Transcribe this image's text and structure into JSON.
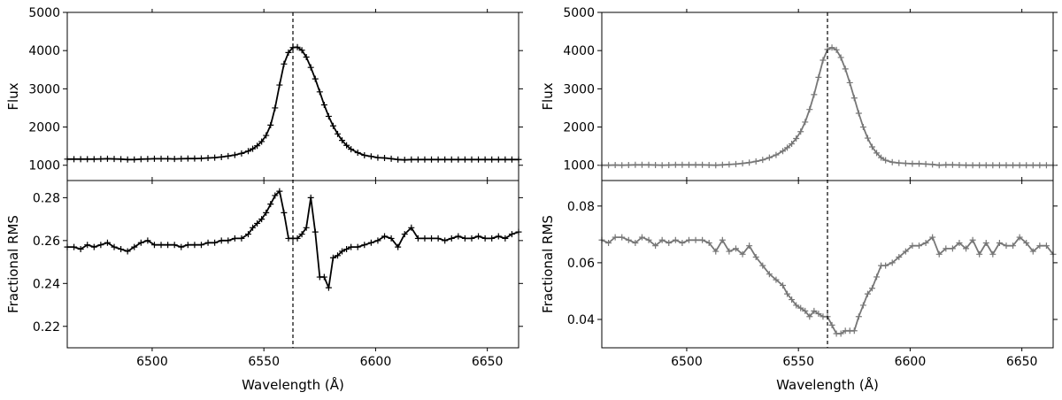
{
  "chart_data": [
    {
      "panel": "left",
      "type": "line",
      "color": "#000000",
      "marker": "+",
      "reference_line_x": 6563,
      "xlim": [
        6462,
        6664
      ],
      "xticks": [
        "6500",
        "6550",
        "6600",
        "6650"
      ],
      "xtick_values": [
        6500,
        6550,
        6600,
        6650
      ],
      "xlabel": "Wavelength (Å)",
      "subplots": [
        {
          "name": "flux",
          "ylabel": "Flux",
          "ylim": [
            600,
            5000
          ],
          "yticks": [
            "1000",
            "2000",
            "3000",
            "4000",
            "5000"
          ],
          "ytick_values": [
            1000,
            2000,
            3000,
            4000,
            5000
          ],
          "x": [
            6462,
            6465,
            6468,
            6471,
            6474,
            6477,
            6480,
            6483,
            6486,
            6489,
            6492,
            6495,
            6498,
            6501,
            6504,
            6507,
            6510,
            6513,
            6516,
            6519,
            6522,
            6525,
            6528,
            6531,
            6534,
            6537,
            6540,
            6543,
            6545,
            6547,
            6549,
            6551,
            6553,
            6555,
            6557,
            6559,
            6561,
            6563,
            6565,
            6567,
            6569,
            6571,
            6573,
            6575,
            6577,
            6579,
            6581,
            6583,
            6585,
            6587,
            6589,
            6592,
            6595,
            6598,
            6601,
            6604,
            6607,
            6610,
            6613,
            6616,
            6619,
            6622,
            6625,
            6628,
            6631,
            6634,
            6637,
            6640,
            6643,
            6646,
            6649,
            6652,
            6655,
            6658,
            6661,
            6664
          ],
          "y": [
            1160,
            1160,
            1160,
            1160,
            1160,
            1165,
            1170,
            1165,
            1160,
            1150,
            1150,
            1160,
            1165,
            1170,
            1170,
            1170,
            1165,
            1170,
            1175,
            1175,
            1180,
            1190,
            1200,
            1215,
            1240,
            1270,
            1310,
            1370,
            1430,
            1510,
            1620,
            1780,
            2050,
            2500,
            3100,
            3650,
            3950,
            4080,
            4090,
            4010,
            3830,
            3560,
            3260,
            2920,
            2580,
            2280,
            2030,
            1820,
            1650,
            1520,
            1420,
            1330,
            1260,
            1230,
            1200,
            1190,
            1170,
            1150,
            1140,
            1150,
            1150,
            1150,
            1150,
            1150,
            1150,
            1150,
            1150,
            1150,
            1150,
            1150,
            1150,
            1150,
            1150,
            1150,
            1150,
            1150
          ]
        },
        {
          "name": "rms",
          "ylabel": "Fractional RMS",
          "ylim": [
            0.21,
            0.288
          ],
          "yticks": [
            "0.22",
            "0.24",
            "0.26",
            "0.28"
          ],
          "ytick_values": [
            0.22,
            0.24,
            0.26,
            0.28
          ],
          "x": [
            6462,
            6465,
            6468,
            6471,
            6474,
            6477,
            6480,
            6483,
            6486,
            6489,
            6492,
            6495,
            6498,
            6501,
            6504,
            6507,
            6510,
            6513,
            6516,
            6519,
            6522,
            6525,
            6528,
            6531,
            6534,
            6537,
            6540,
            6543,
            6545,
            6547,
            6549,
            6551,
            6553,
            6555,
            6557,
            6559,
            6561,
            6563,
            6565,
            6567,
            6569,
            6571,
            6573,
            6575,
            6577,
            6579,
            6581,
            6583,
            6585,
            6587,
            6589,
            6592,
            6595,
            6598,
            6601,
            6604,
            6607,
            6610,
            6613,
            6616,
            6619,
            6622,
            6625,
            6628,
            6631,
            6634,
            6637,
            6640,
            6643,
            6646,
            6649,
            6652,
            6655,
            6658,
            6661,
            6664
          ],
          "y": [
            0.257,
            0.257,
            0.256,
            0.258,
            0.257,
            0.258,
            0.259,
            0.257,
            0.256,
            0.255,
            0.257,
            0.259,
            0.26,
            0.258,
            0.258,
            0.258,
            0.258,
            0.257,
            0.258,
            0.258,
            0.258,
            0.259,
            0.259,
            0.26,
            0.26,
            0.261,
            0.261,
            0.263,
            0.266,
            0.268,
            0.27,
            0.273,
            0.277,
            0.281,
            0.283,
            0.273,
            0.261,
            0.261,
            0.261,
            0.263,
            0.266,
            0.28,
            0.264,
            0.243,
            0.243,
            0.238,
            0.252,
            0.253,
            0.255,
            0.256,
            0.257,
            0.257,
            0.258,
            0.259,
            0.26,
            0.262,
            0.261,
            0.257,
            0.263,
            0.266,
            0.261,
            0.261,
            0.261,
            0.261,
            0.26,
            0.261,
            0.262,
            0.261,
            0.261,
            0.262,
            0.261,
            0.261,
            0.262,
            0.261,
            0.263,
            0.264
          ]
        }
      ]
    },
    {
      "panel": "right",
      "type": "line",
      "color": "#777777",
      "marker": "+",
      "reference_line_x": 6563,
      "xlim": [
        6462,
        6664
      ],
      "xticks": [
        "6500",
        "6550",
        "6600",
        "6650"
      ],
      "xtick_values": [
        6500,
        6550,
        6600,
        6650
      ],
      "xlabel": "Wavelength (Å)",
      "subplots": [
        {
          "name": "flux",
          "ylabel": "Flux",
          "ylim": [
            600,
            5000
          ],
          "yticks": [
            "1000",
            "2000",
            "3000",
            "4000",
            "5000"
          ],
          "ytick_values": [
            1000,
            2000,
            3000,
            4000,
            5000
          ],
          "x": [
            6462,
            6465,
            6468,
            6471,
            6474,
            6477,
            6480,
            6483,
            6486,
            6489,
            6492,
            6495,
            6498,
            6501,
            6504,
            6507,
            6510,
            6513,
            6516,
            6519,
            6522,
            6525,
            6528,
            6531,
            6534,
            6537,
            6540,
            6543,
            6545,
            6547,
            6549,
            6551,
            6553,
            6555,
            6557,
            6559,
            6561,
            6563,
            6565,
            6567,
            6569,
            6571,
            6573,
            6575,
            6577,
            6579,
            6581,
            6583,
            6585,
            6587,
            6589,
            6592,
            6595,
            6598,
            6601,
            6604,
            6607,
            6610,
            6613,
            6616,
            6619,
            6622,
            6625,
            6628,
            6631,
            6634,
            6637,
            6640,
            6643,
            6646,
            6649,
            6652,
            6655,
            6658,
            6661,
            6664
          ],
          "y": [
            1000,
            1000,
            1005,
            1000,
            1005,
            1010,
            1010,
            1010,
            1005,
            1000,
            1005,
            1010,
            1010,
            1010,
            1010,
            1010,
            1005,
            1000,
            1010,
            1020,
            1030,
            1050,
            1070,
            1100,
            1140,
            1200,
            1270,
            1370,
            1460,
            1560,
            1700,
            1880,
            2130,
            2460,
            2850,
            3300,
            3750,
            4030,
            4080,
            4020,
            3820,
            3520,
            3160,
            2760,
            2360,
            2000,
            1710,
            1480,
            1320,
            1200,
            1130,
            1080,
            1060,
            1050,
            1040,
            1040,
            1030,
            1020,
            1000,
            1010,
            1010,
            1005,
            1000,
            1000,
            1000,
            1000,
            1000,
            1000,
            1000,
            1000,
            1000,
            1000,
            1000,
            1000,
            1000,
            1000
          ]
        },
        {
          "name": "rms",
          "ylabel": "Fractional RMS",
          "ylim": [
            0.03,
            0.089
          ],
          "yticks": [
            "0.04",
            "0.06",
            "0.08"
          ],
          "ytick_values": [
            0.04,
            0.06,
            0.08
          ],
          "x": [
            6462,
            6465,
            6468,
            6471,
            6474,
            6477,
            6480,
            6483,
            6486,
            6489,
            6492,
            6495,
            6498,
            6501,
            6504,
            6507,
            6510,
            6513,
            6516,
            6519,
            6522,
            6525,
            6528,
            6531,
            6534,
            6537,
            6540,
            6543,
            6545,
            6547,
            6549,
            6551,
            6553,
            6555,
            6557,
            6559,
            6561,
            6563,
            6565,
            6567,
            6569,
            6571,
            6573,
            6575,
            6577,
            6579,
            6581,
            6583,
            6585,
            6587,
            6589,
            6592,
            6595,
            6598,
            6601,
            6604,
            6607,
            6610,
            6613,
            6616,
            6619,
            6622,
            6625,
            6628,
            6631,
            6634,
            6637,
            6640,
            6643,
            6646,
            6649,
            6652,
            6655,
            6658,
            6661,
            6664
          ],
          "y": [
            0.068,
            0.067,
            0.069,
            0.069,
            0.068,
            0.067,
            0.069,
            0.068,
            0.066,
            0.068,
            0.067,
            0.068,
            0.067,
            0.068,
            0.068,
            0.068,
            0.067,
            0.064,
            0.068,
            0.064,
            0.065,
            0.063,
            0.066,
            0.062,
            0.059,
            0.056,
            0.054,
            0.052,
            0.049,
            0.047,
            0.045,
            0.044,
            0.043,
            0.041,
            0.043,
            0.042,
            0.041,
            0.041,
            0.038,
            0.035,
            0.035,
            0.036,
            0.036,
            0.036,
            0.041,
            0.045,
            0.049,
            0.051,
            0.055,
            0.059,
            0.059,
            0.06,
            0.062,
            0.064,
            0.066,
            0.066,
            0.067,
            0.069,
            0.063,
            0.065,
            0.065,
            0.067,
            0.065,
            0.068,
            0.063,
            0.067,
            0.063,
            0.067,
            0.066,
            0.066,
            0.069,
            0.067,
            0.064,
            0.066,
            0.066,
            0.063
          ]
        }
      ]
    }
  ]
}
